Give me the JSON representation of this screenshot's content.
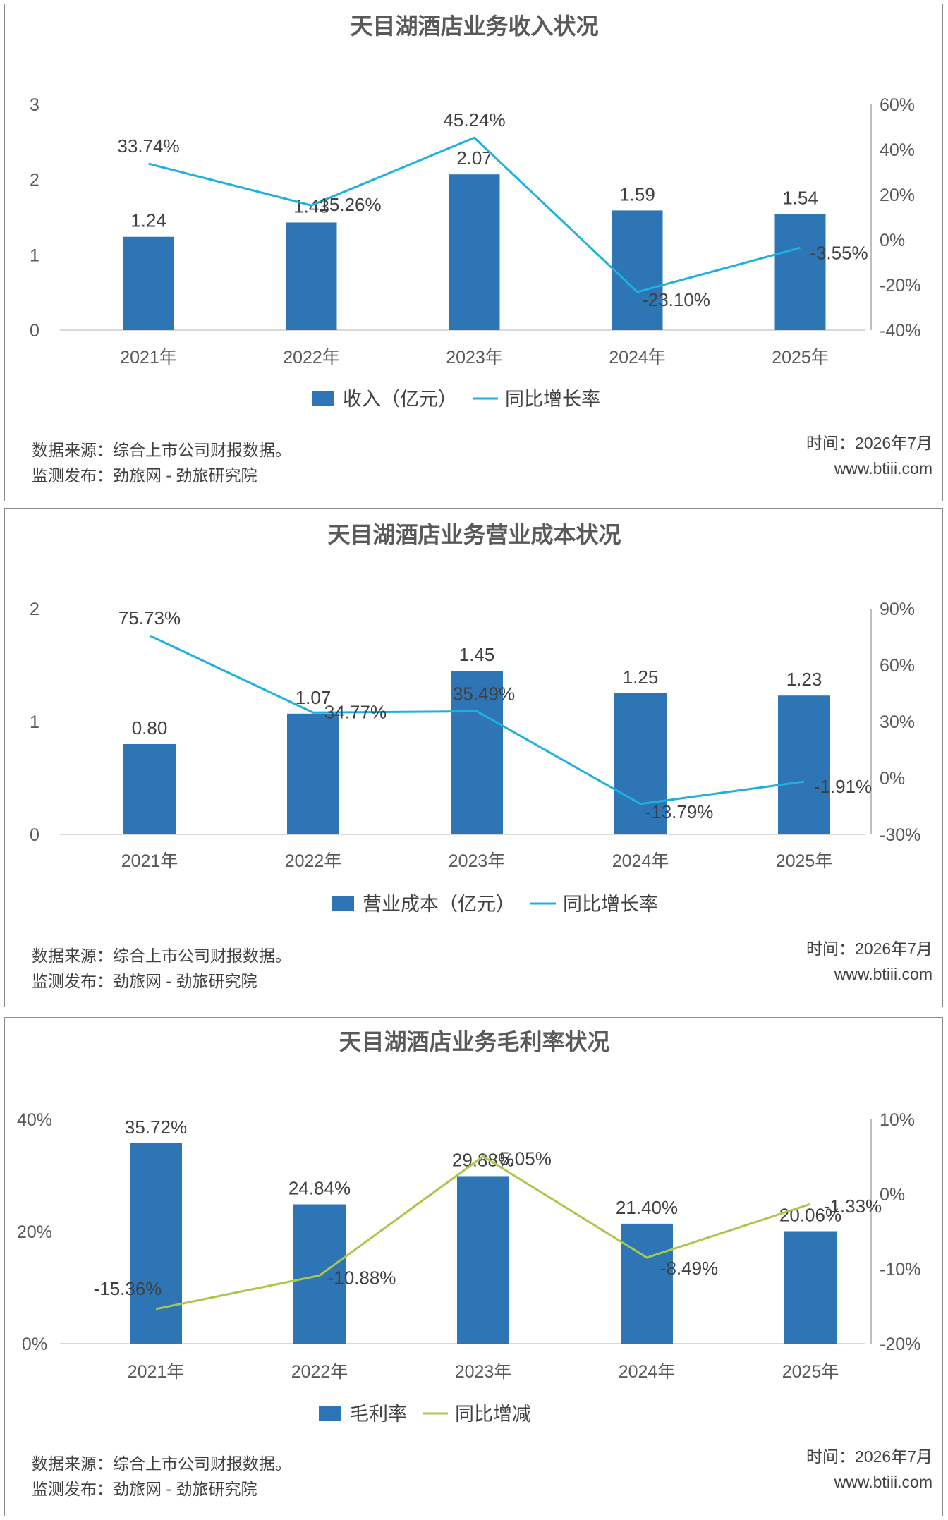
{
  "panels": [
    {
      "footer": {
        "source": "数据来源：综合上市公司财报数据。",
        "publisher": "监测发布：劲旅网 - 劲旅研究院",
        "time": "时间：2026年7月",
        "site": "www.btiii.com"
      }
    },
    {
      "footer": {
        "source": "数据来源：综合上市公司财报数据。",
        "publisher": "监测发布：劲旅网 - 劲旅研究院",
        "time": "时间：2026年7月",
        "site": "www.btiii.com"
      }
    },
    {
      "footer": {
        "source": "数据来源：综合上市公司财报数据。",
        "publisher": "监测发布：劲旅网 - 劲旅研究院",
        "time": "时间：2026年7月",
        "site": "www.btiii.com"
      }
    }
  ],
  "chart_data": [
    {
      "type": "bar+line",
      "title": "天目湖酒店业务收入状况",
      "categories": [
        "2021年",
        "2022年",
        "2023年",
        "2024年",
        "2025年"
      ],
      "series": [
        {
          "name": "收入（亿元）",
          "type": "bar",
          "axis": "left",
          "values": [
            1.24,
            1.43,
            2.07,
            1.59,
            1.54
          ],
          "labels": [
            "1.24",
            "1.43",
            "2.07",
            "1.59",
            "1.54"
          ],
          "color": "#2e75b6"
        },
        {
          "name": "同比增长率",
          "type": "line",
          "axis": "right",
          "values": [
            33.74,
            15.26,
            45.24,
            -23.1,
            -3.55
          ],
          "labels": [
            "33.74%",
            "15.26%",
            "45.24%",
            "-23.10%",
            "-3.55%"
          ],
          "color": "#1fb0e0"
        }
      ],
      "left_axis": {
        "ylim": [
          0,
          3
        ],
        "ticks": [
          0,
          1,
          2,
          3
        ],
        "tick_labels": [
          "0",
          "1",
          "2",
          "3"
        ]
      },
      "right_axis": {
        "ylim": [
          -40,
          60
        ],
        "ticks": [
          -40,
          -20,
          0,
          20,
          40,
          60
        ],
        "tick_labels": [
          "-40%",
          "-20%",
          "0%",
          "20%",
          "40%",
          "60%"
        ]
      },
      "legend_position": "bottom",
      "grid": false
    },
    {
      "type": "bar+line",
      "title": "天目湖酒店业务营业成本状况",
      "categories": [
        "2021年",
        "2022年",
        "2023年",
        "2024年",
        "2025年"
      ],
      "series": [
        {
          "name": "营业成本（亿元）",
          "type": "bar",
          "axis": "left",
          "values": [
            0.8,
            1.07,
            1.45,
            1.25,
            1.23
          ],
          "labels": [
            "0.80",
            "1.07",
            "1.45",
            "1.25",
            "1.23"
          ],
          "color": "#2e75b6"
        },
        {
          "name": "同比增长率",
          "type": "line",
          "axis": "right",
          "values": [
            75.73,
            34.77,
            35.49,
            -13.79,
            -1.91
          ],
          "labels": [
            "75.73%",
            "34.77%",
            "35.49%",
            "-13.79%",
            "-1.91%"
          ],
          "color": "#1fb0e0"
        }
      ],
      "left_axis": {
        "ylim": [
          0,
          2
        ],
        "ticks": [
          0,
          1,
          2
        ],
        "tick_labels": [
          "0",
          "1",
          "2"
        ]
      },
      "right_axis": {
        "ylim": [
          -30,
          90
        ],
        "ticks": [
          -30,
          0,
          30,
          60,
          90
        ],
        "tick_labels": [
          "-30%",
          "0%",
          "30%",
          "60%",
          "90%"
        ]
      },
      "legend_position": "bottom",
      "grid": false
    },
    {
      "type": "bar+line",
      "title": "天目湖酒店业务毛利率状况",
      "categories": [
        "2021年",
        "2022年",
        "2023年",
        "2024年",
        "2025年"
      ],
      "series": [
        {
          "name": "毛利率",
          "type": "bar",
          "axis": "left",
          "values": [
            35.72,
            24.84,
            29.88,
            21.4,
            20.06
          ],
          "labels": [
            "35.72%",
            "24.84%",
            "29.88%",
            "21.40%",
            "20.06%"
          ],
          "color": "#2e75b6"
        },
        {
          "name": "同比增减",
          "type": "line",
          "axis": "right",
          "values": [
            -15.36,
            -10.88,
            5.05,
            -8.49,
            -1.33
          ],
          "labels": [
            "-15.36%",
            "-10.88%",
            "5.05%",
            "-8.49%",
            "-1.33%"
          ],
          "color": "#a9c84a"
        }
      ],
      "left_axis": {
        "ylim": [
          0,
          40
        ],
        "ticks": [
          0,
          20,
          40
        ],
        "tick_labels": [
          "0%",
          "20%",
          "40%"
        ]
      },
      "right_axis": {
        "ylim": [
          -20,
          10
        ],
        "ticks": [
          -20,
          -10,
          0,
          10
        ],
        "tick_labels": [
          "-20%",
          "-10%",
          "0%",
          "10%"
        ]
      },
      "legend_position": "bottom",
      "grid": false
    }
  ]
}
